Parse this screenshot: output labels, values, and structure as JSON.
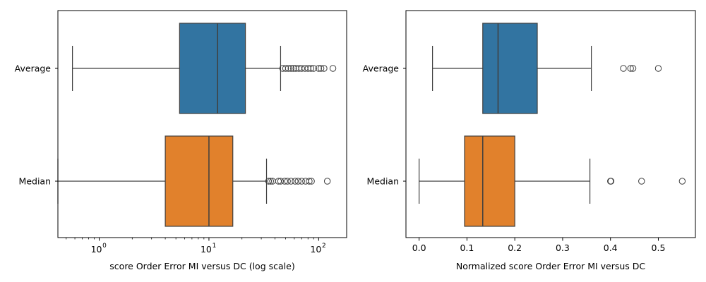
{
  "chart_data": [
    {
      "type": "boxplot",
      "orientation": "horizontal",
      "xlabel": "score Order Error MI versus DC (log scale)",
      "ylabel": "",
      "xscale": "log",
      "xlim": [
        0.42,
        180
      ],
      "categories": [
        "Average",
        "Median"
      ],
      "major_ticks": [
        1,
        10,
        100
      ],
      "major_tick_labels": [
        "10",
        "10",
        "10"
      ],
      "major_tick_exponents": [
        "0",
        "1",
        "2"
      ],
      "grid": false,
      "legend": "none",
      "series": [
        {
          "name": "Average",
          "color": "#3274a1",
          "whisker_low": 0.57,
          "q1": 5.4,
          "median": 12.0,
          "q3": 21.5,
          "whisker_high": 45.0,
          "outliers": [
            47,
            50,
            53,
            56,
            59,
            62,
            66,
            70,
            75,
            80,
            85,
            90,
            100,
            105,
            112,
            135
          ]
        },
        {
          "name": "Median",
          "color": "#e1812c",
          "whisker_low": 0.42,
          "q1": 4.0,
          "median": 10.0,
          "q3": 16.5,
          "whisker_high": 33.5,
          "outliers": [
            35,
            36.5,
            38,
            43,
            45,
            49,
            52,
            56,
            61,
            65,
            70,
            76,
            82,
            86,
            120
          ]
        }
      ]
    },
    {
      "type": "boxplot",
      "orientation": "horizontal",
      "xlabel": "Normalized score Order Error MI versus DC",
      "ylabel": "",
      "xscale": "linear",
      "xlim": [
        -0.0275,
        0.5775
      ],
      "categories": [
        "Average",
        "Median"
      ],
      "ticks": [
        0.0,
        0.1,
        0.2,
        0.3,
        0.4,
        0.5
      ],
      "tick_labels": [
        "0.0",
        "0.1",
        "0.2",
        "0.3",
        "0.4",
        "0.5"
      ],
      "grid": false,
      "legend": "none",
      "series": [
        {
          "name": "Average",
          "color": "#3274a1",
          "whisker_low": 0.028,
          "q1": 0.133,
          "median": 0.165,
          "q3": 0.247,
          "whisker_high": 0.36,
          "outliers": [
            0.427,
            0.442,
            0.447,
            0.5
          ]
        },
        {
          "name": "Median",
          "color": "#e1812c",
          "whisker_low": 0.0,
          "q1": 0.095,
          "median": 0.133,
          "q3": 0.2,
          "whisker_high": 0.357,
          "outliers": [
            0.4,
            0.401,
            0.465,
            0.55
          ]
        }
      ]
    }
  ]
}
